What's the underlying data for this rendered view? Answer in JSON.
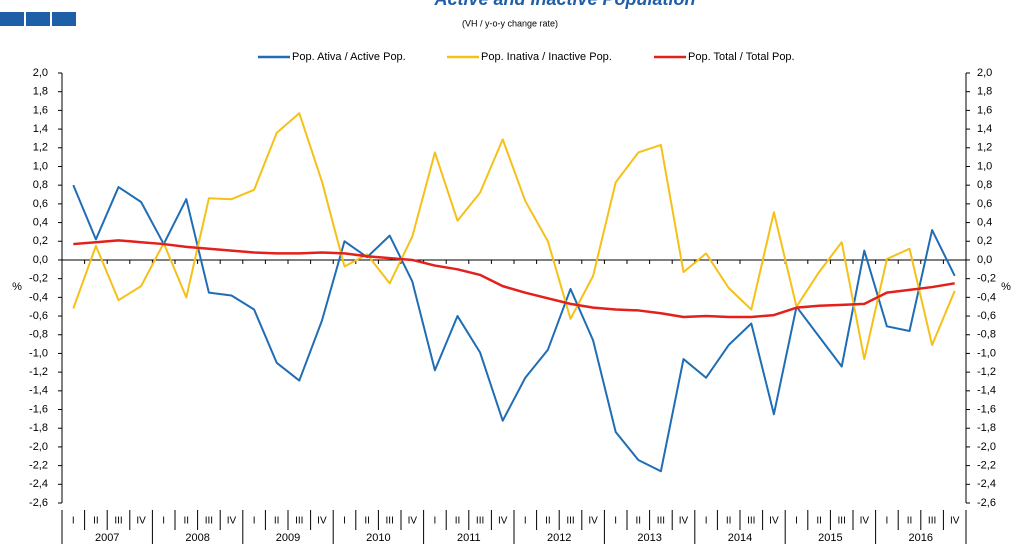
{
  "chart_data": {
    "type": "line",
    "title": "Active and Inactive Population",
    "subtitle": "(VH / y-o-y change rate)",
    "y_label": "%",
    "y2_label": "%",
    "categories": [
      "I",
      "II",
      "III",
      "IV",
      "I",
      "II",
      "III",
      "IV",
      "I",
      "II",
      "III",
      "IV",
      "I",
      "II",
      "III",
      "IV",
      "I",
      "II",
      "III",
      "IV",
      "I",
      "II",
      "III",
      "IV",
      "I",
      "II",
      "III",
      "IV",
      "I",
      "II",
      "III",
      "IV",
      "I",
      "II",
      "III",
      "IV",
      "I",
      "II",
      "III",
      "IV"
    ],
    "groups": [
      "2007",
      "2008",
      "2009",
      "2010",
      "2011",
      "2012",
      "2013",
      "2014",
      "2015",
      "2016"
    ],
    "series": [
      {
        "name": "Pop. Ativa / Active Pop.",
        "color": "#1f6db5",
        "values": [
          0.8,
          0.22,
          0.78,
          0.62,
          0.17,
          0.65,
          -0.35,
          -0.38,
          -0.53,
          -1.1,
          -1.29,
          -0.65,
          0.2,
          0.03,
          0.26,
          -0.23,
          -1.18,
          -0.6,
          -0.99,
          -1.72,
          -1.26,
          -0.96,
          -0.31,
          -0.86,
          -1.84,
          -2.14,
          -2.26,
          -1.06,
          -1.26,
          -0.91,
          -0.68,
          -1.65,
          -0.5,
          -0.82,
          -1.14,
          0.1,
          -0.71,
          -0.76,
          0.32,
          -0.17
        ]
      },
      {
        "name": "Pop. Inativa / Inactive Pop.",
        "color": "#f5c118",
        "values": [
          -0.52,
          0.15,
          -0.43,
          -0.28,
          0.18,
          -0.4,
          0.66,
          0.65,
          0.75,
          1.36,
          1.57,
          0.84,
          -0.07,
          0.06,
          -0.25,
          0.25,
          1.15,
          0.42,
          0.72,
          1.29,
          0.63,
          0.2,
          -0.63,
          -0.17,
          0.83,
          1.15,
          1.23,
          -0.13,
          0.07,
          -0.3,
          -0.53,
          0.51,
          -0.5,
          -0.13,
          0.19,
          -1.06,
          0.01,
          0.12,
          -0.91,
          -0.33
        ]
      },
      {
        "name": "Pop. Total / Total Pop.",
        "color": "#e3201b",
        "values": [
          0.17,
          0.19,
          0.21,
          0.19,
          0.17,
          0.14,
          0.12,
          0.1,
          0.08,
          0.07,
          0.07,
          0.08,
          0.07,
          0.04,
          0.02,
          0.0,
          -0.06,
          -0.1,
          -0.16,
          -0.28,
          -0.35,
          -0.41,
          -0.47,
          -0.51,
          -0.53,
          -0.54,
          -0.57,
          -0.61,
          -0.6,
          -0.61,
          -0.61,
          -0.59,
          -0.51,
          -0.49,
          -0.48,
          -0.47,
          -0.35,
          -0.32,
          -0.29,
          -0.25
        ]
      }
    ],
    "ylim": [
      -2.6,
      2.0
    ],
    "yticks": [
      {
        "value": 2.0,
        "label": "2,0"
      },
      {
        "value": 1.8,
        "label": "1,8"
      },
      {
        "value": 1.6,
        "label": "1,6"
      },
      {
        "value": 1.4,
        "label": "1,4"
      },
      {
        "value": 1.2,
        "label": "1,2"
      },
      {
        "value": 1.0,
        "label": "1,0"
      },
      {
        "value": 0.8,
        "label": "0,8"
      },
      {
        "value": 0.6,
        "label": "0,6"
      },
      {
        "value": 0.4,
        "label": "0,4"
      },
      {
        "value": 0.2,
        "label": "0,2"
      },
      {
        "value": 0.0,
        "label": "0,0"
      },
      {
        "value": -0.2,
        "label": "-0,2"
      },
      {
        "value": -0.4,
        "label": "-0,4"
      },
      {
        "value": -0.6,
        "label": "-0,6"
      },
      {
        "value": -0.8,
        "label": "-0,8"
      },
      {
        "value": -1.0,
        "label": "-1,0"
      },
      {
        "value": -1.2,
        "label": "-1,2"
      },
      {
        "value": -1.4,
        "label": "-1,4"
      },
      {
        "value": -1.6,
        "label": "-1,6"
      },
      {
        "value": -1.8,
        "label": "-1,8"
      },
      {
        "value": -2.0,
        "label": "-2,0"
      },
      {
        "value": -2.2,
        "label": "-2,2"
      },
      {
        "value": -2.4,
        "label": "-2,4"
      },
      {
        "value": -2.6,
        "label": "-2,6"
      }
    ],
    "y2lim": [
      -2.6,
      2.0
    ],
    "y2ticks": [
      {
        "value": 2.0,
        "label": "2,0"
      },
      {
        "value": 1.8,
        "label": "1,8"
      },
      {
        "value": 1.6,
        "label": "1,6"
      },
      {
        "value": 1.4,
        "label": "1,4"
      },
      {
        "value": 1.2,
        "label": "1,2"
      },
      {
        "value": 1.0,
        "label": "1,0"
      },
      {
        "value": 0.8,
        "label": "0,8"
      },
      {
        "value": 0.6,
        "label": "0,6"
      },
      {
        "value": 0.4,
        "label": "0,4"
      },
      {
        "value": 0.2,
        "label": "0,2"
      },
      {
        "value": 0.0,
        "label": "0,0"
      },
      {
        "value": -0.2,
        "label": "-0,2"
      },
      {
        "value": -0.4,
        "label": "-0,4"
      },
      {
        "value": -0.6,
        "label": "-0,6"
      },
      {
        "value": -0.8,
        "label": "-0,8"
      },
      {
        "value": -1.0,
        "label": "-1,0"
      },
      {
        "value": -1.2,
        "label": "-1,2"
      },
      {
        "value": -1.4,
        "label": "-1,4"
      },
      {
        "value": -1.6,
        "label": "-1,6"
      },
      {
        "value": -1.8,
        "label": "-1,8"
      },
      {
        "value": -2.0,
        "label": "-2,0"
      },
      {
        "value": -2.2,
        "label": "-2,2"
      },
      {
        "value": -2.4,
        "label": "-2,4"
      },
      {
        "value": -2.6,
        "label": "-2,6"
      }
    ],
    "grid": false,
    "legend": "top"
  }
}
